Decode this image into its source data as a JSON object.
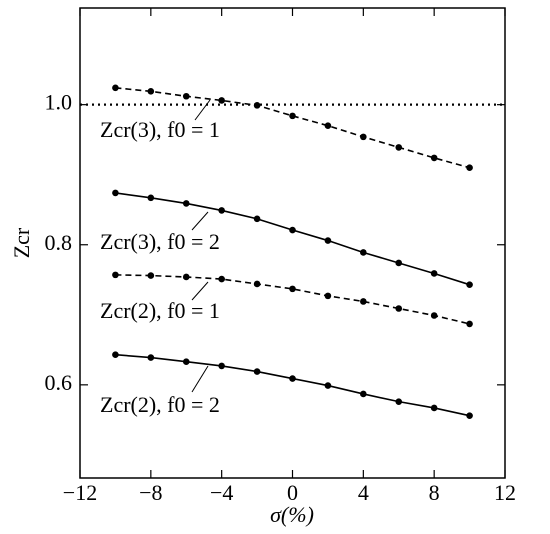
{
  "chart_data": {
    "type": "line",
    "x_label": "σ(%)",
    "y_label": "Zcr",
    "x": [
      -10,
      -8,
      -6,
      -4,
      -2,
      0,
      2,
      4,
      6,
      8,
      10
    ],
    "series": [
      {
        "name": "Zcr(3),  f0 = 1",
        "color": "#000000",
        "linestyle": "dashed",
        "values": [
          1.024,
          1.019,
          1.012,
          1.006,
          0.999,
          0.984,
          0.97,
          0.954,
          0.939,
          0.924,
          0.91
        ]
      },
      {
        "name": "Zcr(3),  f0 = 2",
        "color": "#000000",
        "linestyle": "solid",
        "values": [
          0.874,
          0.867,
          0.859,
          0.849,
          0.837,
          0.821,
          0.806,
          0.789,
          0.774,
          0.759,
          0.743
        ]
      },
      {
        "name": "Zcr(2),  f0 = 1",
        "color": "#000000",
        "linestyle": "dashed",
        "values": [
          0.757,
          0.756,
          0.754,
          0.751,
          0.744,
          0.737,
          0.727,
          0.719,
          0.709,
          0.699,
          0.687
        ]
      },
      {
        "name": "Zcr(2),  f0 = 2",
        "color": "#000000",
        "linestyle": "solid",
        "values": [
          0.643,
          0.639,
          0.633,
          0.627,
          0.619,
          0.609,
          0.599,
          0.587,
          0.576,
          0.567,
          0.556
        ]
      }
    ],
    "hline": 1,
    "xlim": [
      -12,
      12
    ],
    "xticks": [
      {
        "value": -12,
        "label": "−12"
      },
      {
        "value": -8,
        "label": "−8"
      },
      {
        "value": -4,
        "label": "−4"
      },
      0,
      4,
      8,
      12
    ],
    "ylim": [
      0.467,
      1.138
    ],
    "yticks": [
      0.6,
      0.8,
      {
        "value": 1,
        "label": "1.0"
      }
    ]
  }
}
